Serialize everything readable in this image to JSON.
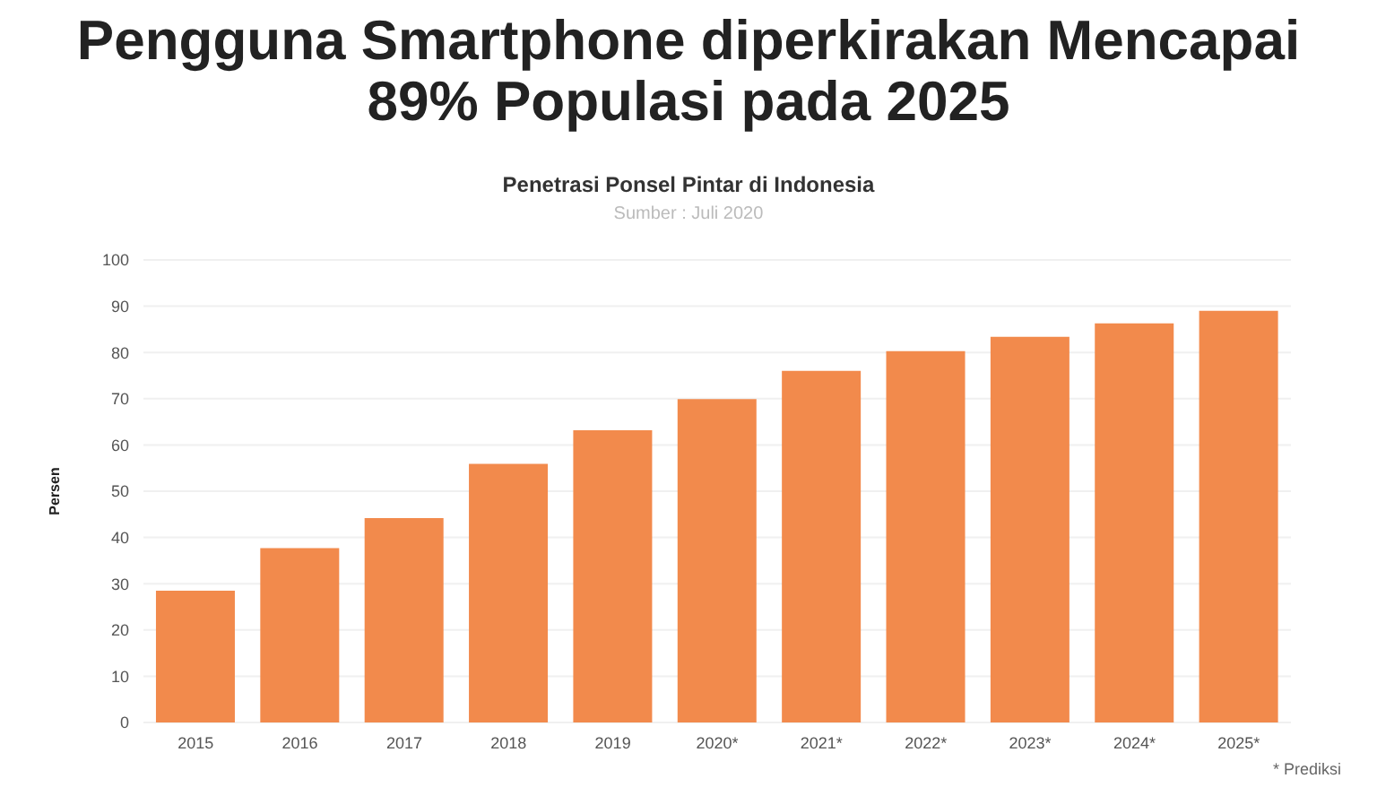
{
  "chart_data": {
    "type": "bar",
    "title": "Pengguna Smartphone diperkirakan Mencapai 89% Populasi pada 2025",
    "subtitle": "Penetrasi Ponsel Pintar di Indonesia",
    "ylabel": "Persen",
    "annotations": [
      "Sumber : Juli 2020",
      "* Prediksi"
    ],
    "categories": [
      "2015",
      "2016",
      "2017",
      "2018",
      "2019",
      "2020*",
      "2021*",
      "2022*",
      "2023*",
      "2024*",
      "2025*"
    ],
    "values": [
      28.5,
      37.7,
      44.2,
      55.9,
      63.2,
      69.9,
      76,
      80.3,
      83.4,
      86.3,
      89
    ],
    "color": "#f28a4c",
    "ylim": [
      0,
      100
    ],
    "yticks": [
      0,
      10,
      20,
      30,
      40,
      50,
      60,
      70,
      80,
      90,
      100
    ],
    "grid": "y",
    "legend": false
  }
}
